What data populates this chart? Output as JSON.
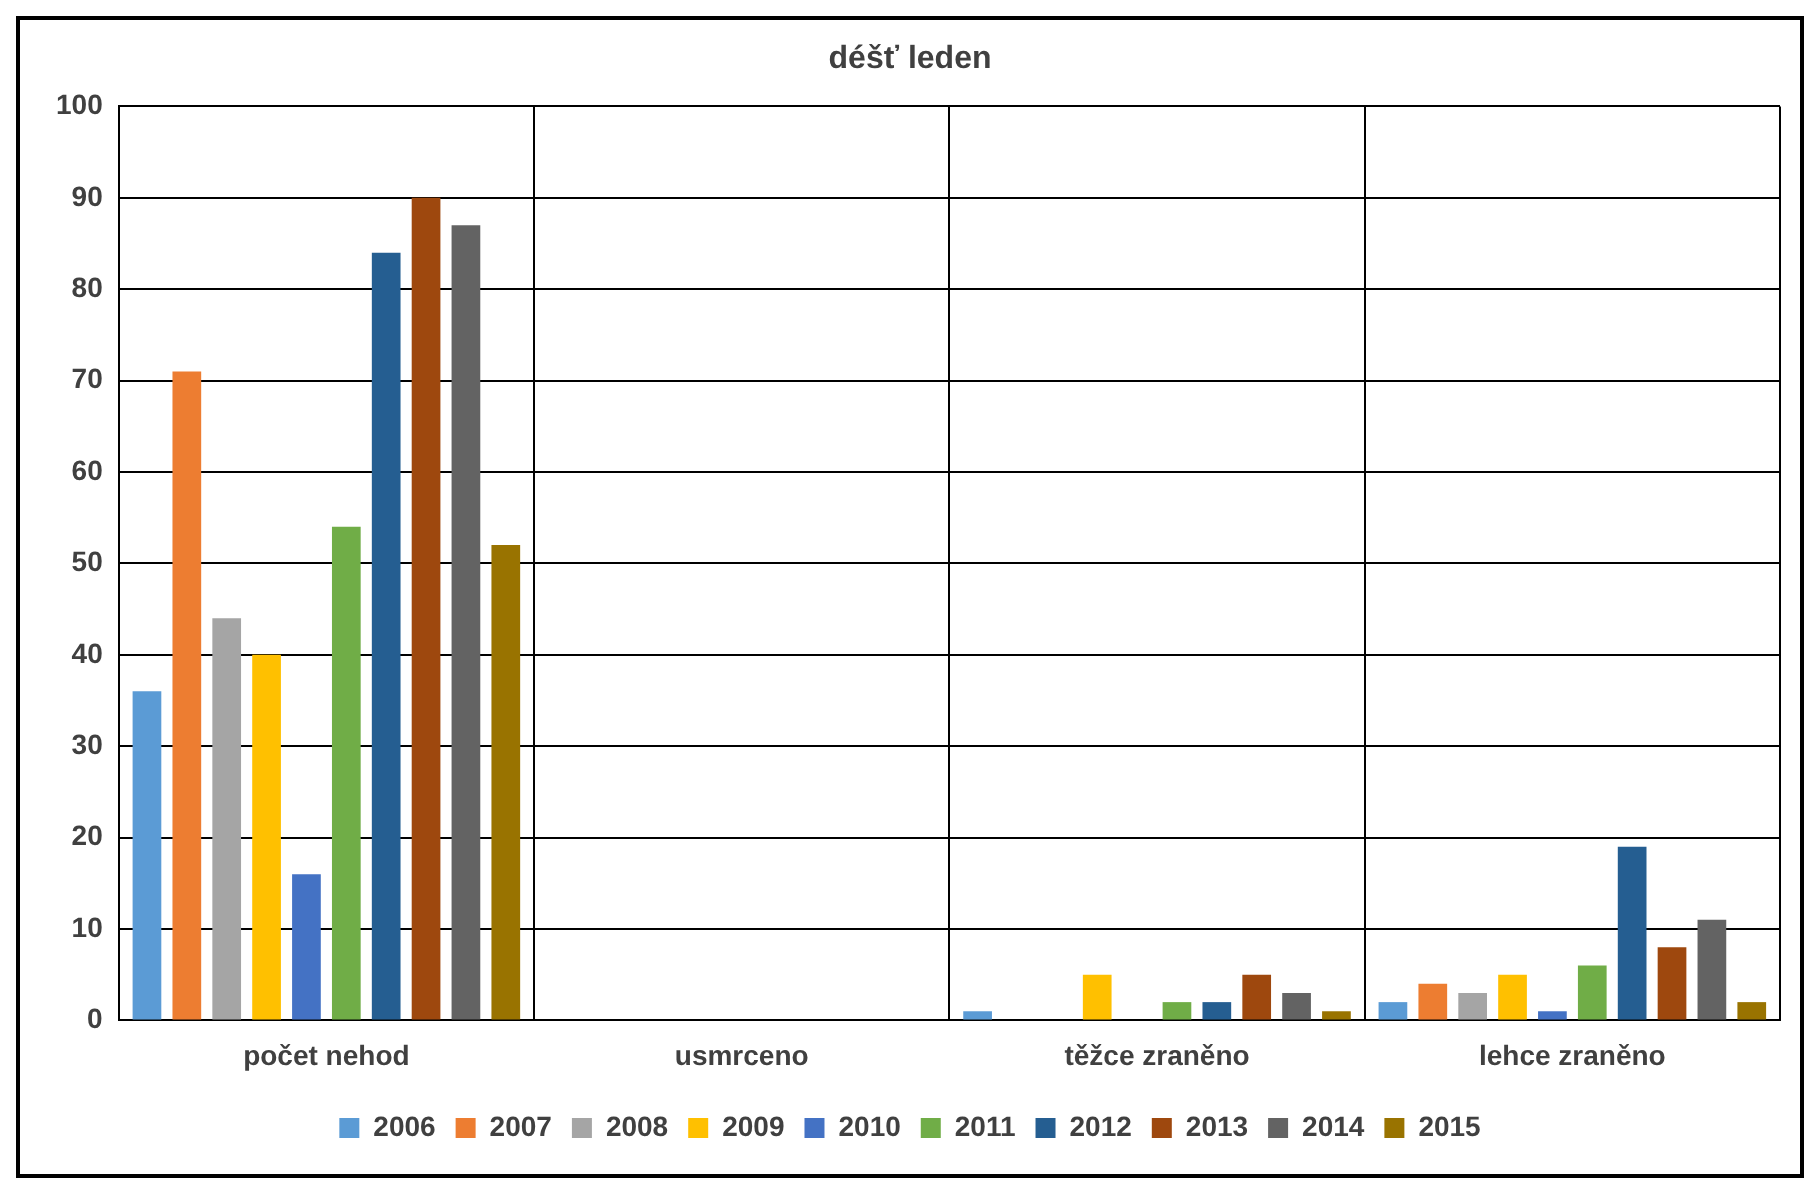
{
  "chart_data": {
    "type": "bar",
    "title": "déšť leden",
    "categories": [
      "počet nehod",
      "usmrceno",
      "těžce zraněno",
      "lehce zraněno"
    ],
    "series": [
      {
        "name": "2006",
        "color": "#5b9bd5",
        "values": [
          36,
          0,
          1,
          2
        ]
      },
      {
        "name": "2007",
        "color": "#ed7d31",
        "values": [
          71,
          0,
          0,
          4
        ]
      },
      {
        "name": "2008",
        "color": "#a5a5a5",
        "values": [
          44,
          0,
          0,
          3
        ]
      },
      {
        "name": "2009",
        "color": "#ffc000",
        "values": [
          40,
          0,
          5,
          5
        ]
      },
      {
        "name": "2010",
        "color": "#4472c4",
        "values": [
          16,
          0,
          0,
          1
        ]
      },
      {
        "name": "2011",
        "color": "#70ad47",
        "values": [
          54,
          0,
          2,
          6
        ]
      },
      {
        "name": "2012",
        "color": "#255e91",
        "values": [
          84,
          0,
          2,
          19
        ]
      },
      {
        "name": "2013",
        "color": "#9e480e",
        "values": [
          90,
          0,
          5,
          8
        ]
      },
      {
        "name": "2014",
        "color": "#636363",
        "values": [
          87,
          0,
          3,
          11
        ]
      },
      {
        "name": "2015",
        "color": "#997300",
        "values": [
          52,
          0,
          1,
          2
        ]
      }
    ],
    "ylim": [
      0,
      100
    ],
    "yticks": [
      0,
      10,
      20,
      30,
      40,
      50,
      60,
      70,
      80,
      90,
      100
    ],
    "grid": true,
    "legend": "bottom"
  }
}
